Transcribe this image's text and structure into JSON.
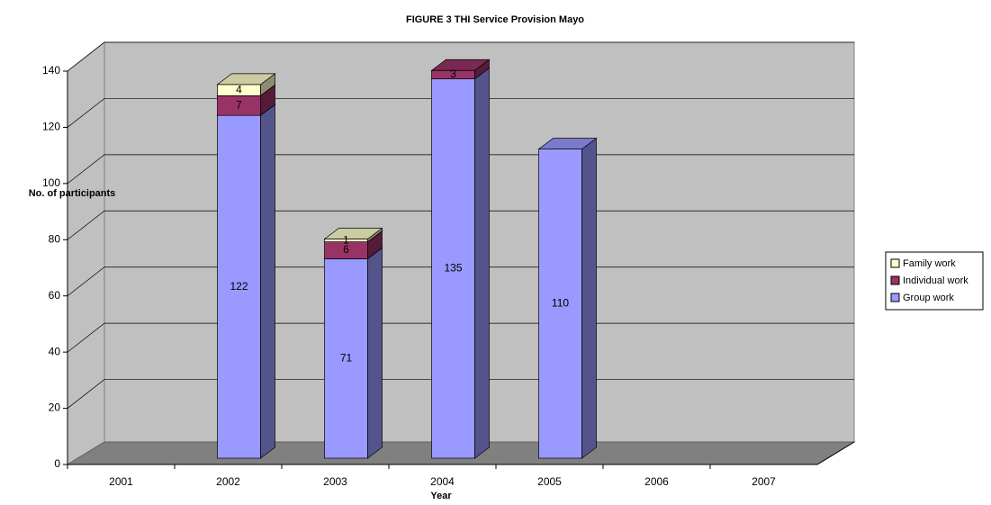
{
  "chart_data": {
    "type": "bar3d_stacked",
    "title": "FIGURE 3 THI Service Provision Mayo",
    "x_label": "Year",
    "y_label": "No. of participants",
    "categories": [
      "2001",
      "2002",
      "2003",
      "2004",
      "2005",
      "2006",
      "2007"
    ],
    "series": [
      {
        "name": "Group work",
        "color": "#9999ff",
        "values": [
          null,
          122,
          71,
          135,
          110,
          null,
          null
        ]
      },
      {
        "name": "Individual work",
        "color": "#993366",
        "values": [
          null,
          7,
          6,
          3,
          null,
          null,
          null
        ]
      },
      {
        "name": "Family work",
        "color": "#ffffcc",
        "values": [
          null,
          4,
          1,
          null,
          null,
          null,
          null
        ]
      }
    ],
    "ylim": [
      0,
      140
    ],
    "yticks": [
      0,
      20,
      40,
      60,
      80,
      100,
      120,
      140
    ],
    "grid": true,
    "legend": "right"
  }
}
